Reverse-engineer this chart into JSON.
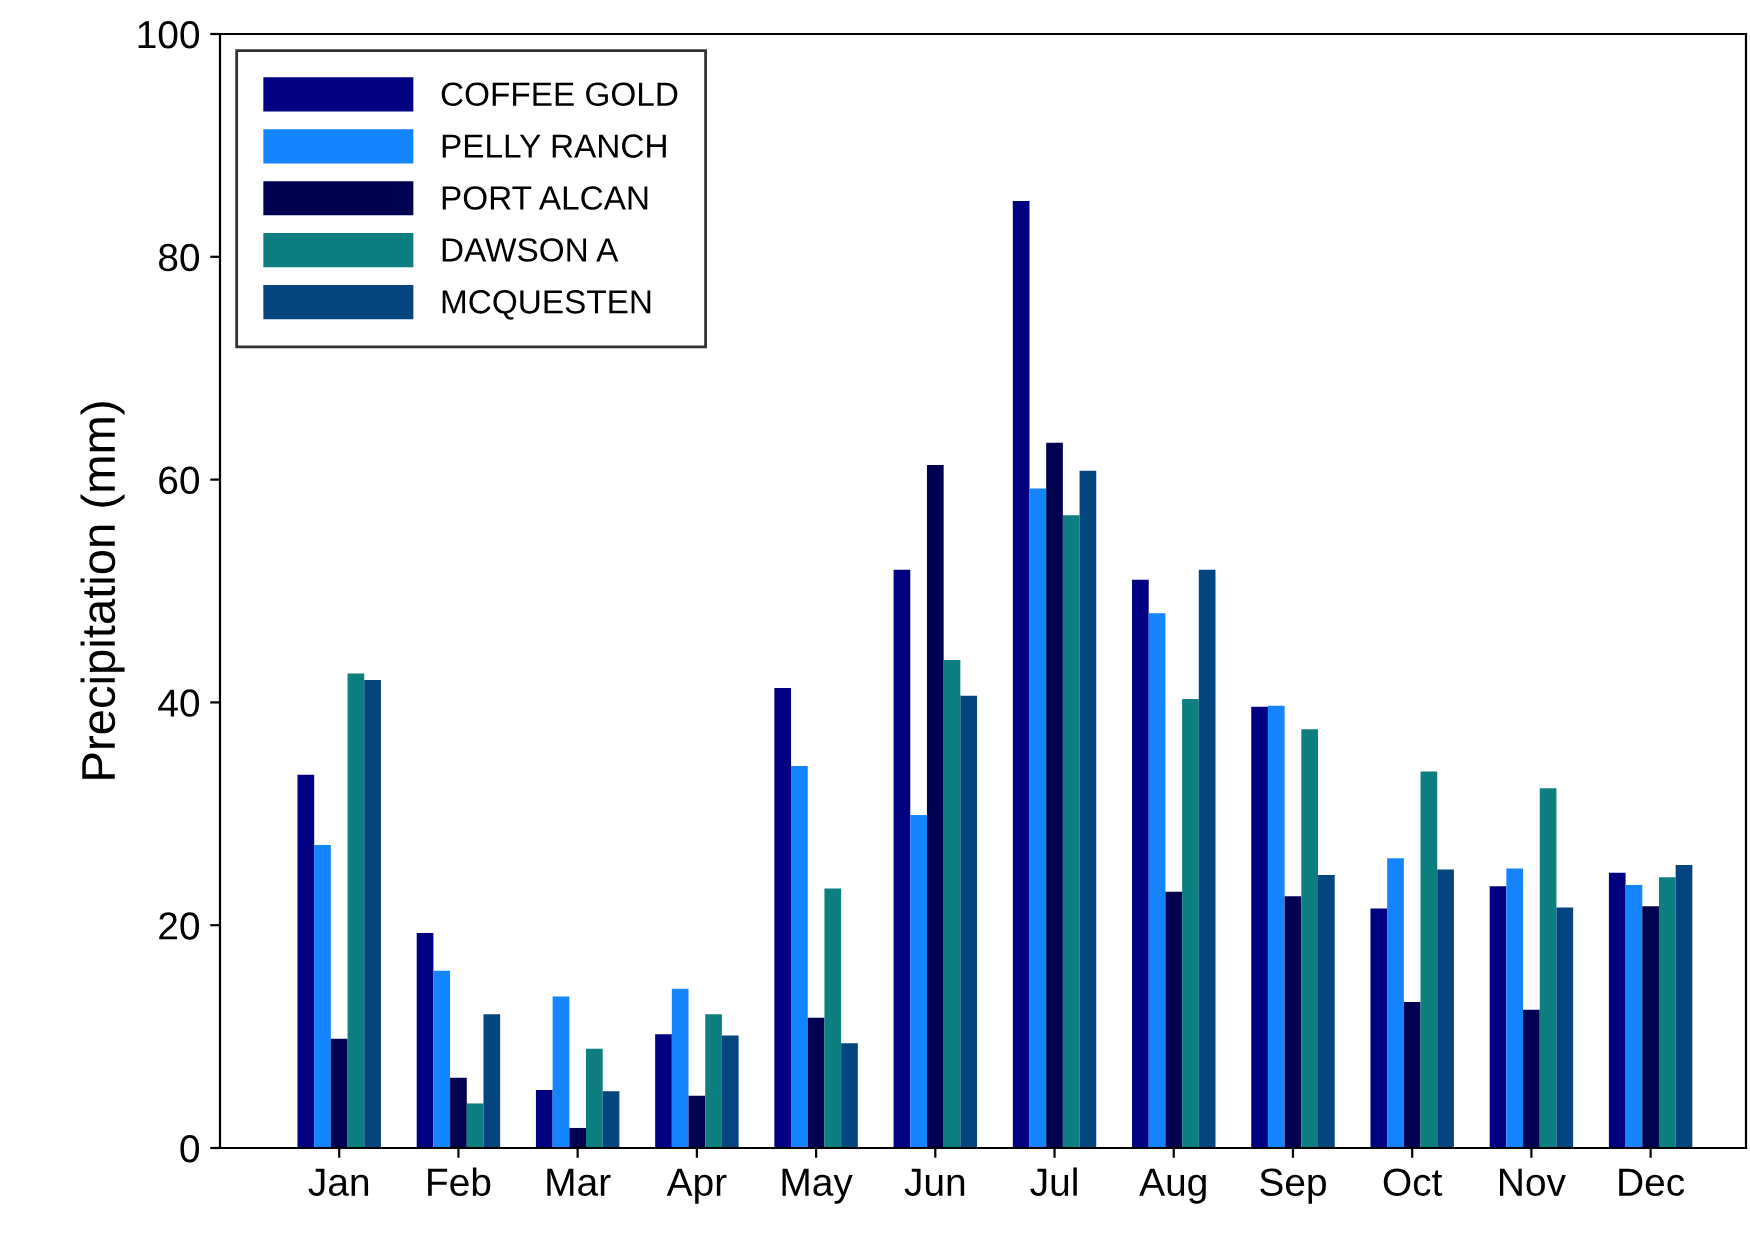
{
  "chart_data": {
    "type": "bar",
    "ylabel": "Precipitation (mm)",
    "categories": [
      "Jan",
      "Feb",
      "Mar",
      "Apr",
      "May",
      "Jun",
      "Jul",
      "Aug",
      "Sep",
      "Oct",
      "Nov",
      "Dec"
    ],
    "series": [
      {
        "name": "COFFEE GOLD",
        "color": "#000080",
        "values": [
          33.5,
          19.3,
          5.2,
          10.2,
          41.3,
          51.9,
          85.0,
          51.0,
          39.6,
          21.5,
          23.5,
          24.7
        ]
      },
      {
        "name": "PELLY RANCH",
        "color": "#1484ff",
        "values": [
          27.2,
          15.9,
          13.6,
          14.3,
          34.3,
          29.9,
          59.2,
          48.0,
          39.7,
          26.0,
          25.1,
          23.6
        ]
      },
      {
        "name": "PORT ALCAN",
        "color": "#000050",
        "values": [
          9.8,
          6.3,
          1.8,
          4.7,
          11.7,
          61.3,
          63.3,
          23.0,
          22.6,
          13.1,
          12.4,
          21.7
        ]
      },
      {
        "name": "DAWSON A",
        "color": "#0e7f80",
        "values": [
          42.6,
          4.0,
          8.9,
          12.0,
          23.3,
          43.8,
          56.8,
          40.3,
          37.6,
          33.8,
          32.3,
          24.3
        ]
      },
      {
        "name": "MCQUESTEN",
        "color": "#04447f",
        "values": [
          42.0,
          12.0,
          5.1,
          10.1,
          9.4,
          40.6,
          60.8,
          51.9,
          24.5,
          25.0,
          21.6,
          25.4
        ]
      }
    ],
    "ylim": [
      0,
      100
    ],
    "yticks": [
      0,
      20,
      40,
      60,
      80,
      100
    ],
    "grid": false,
    "legend": "top left"
  }
}
